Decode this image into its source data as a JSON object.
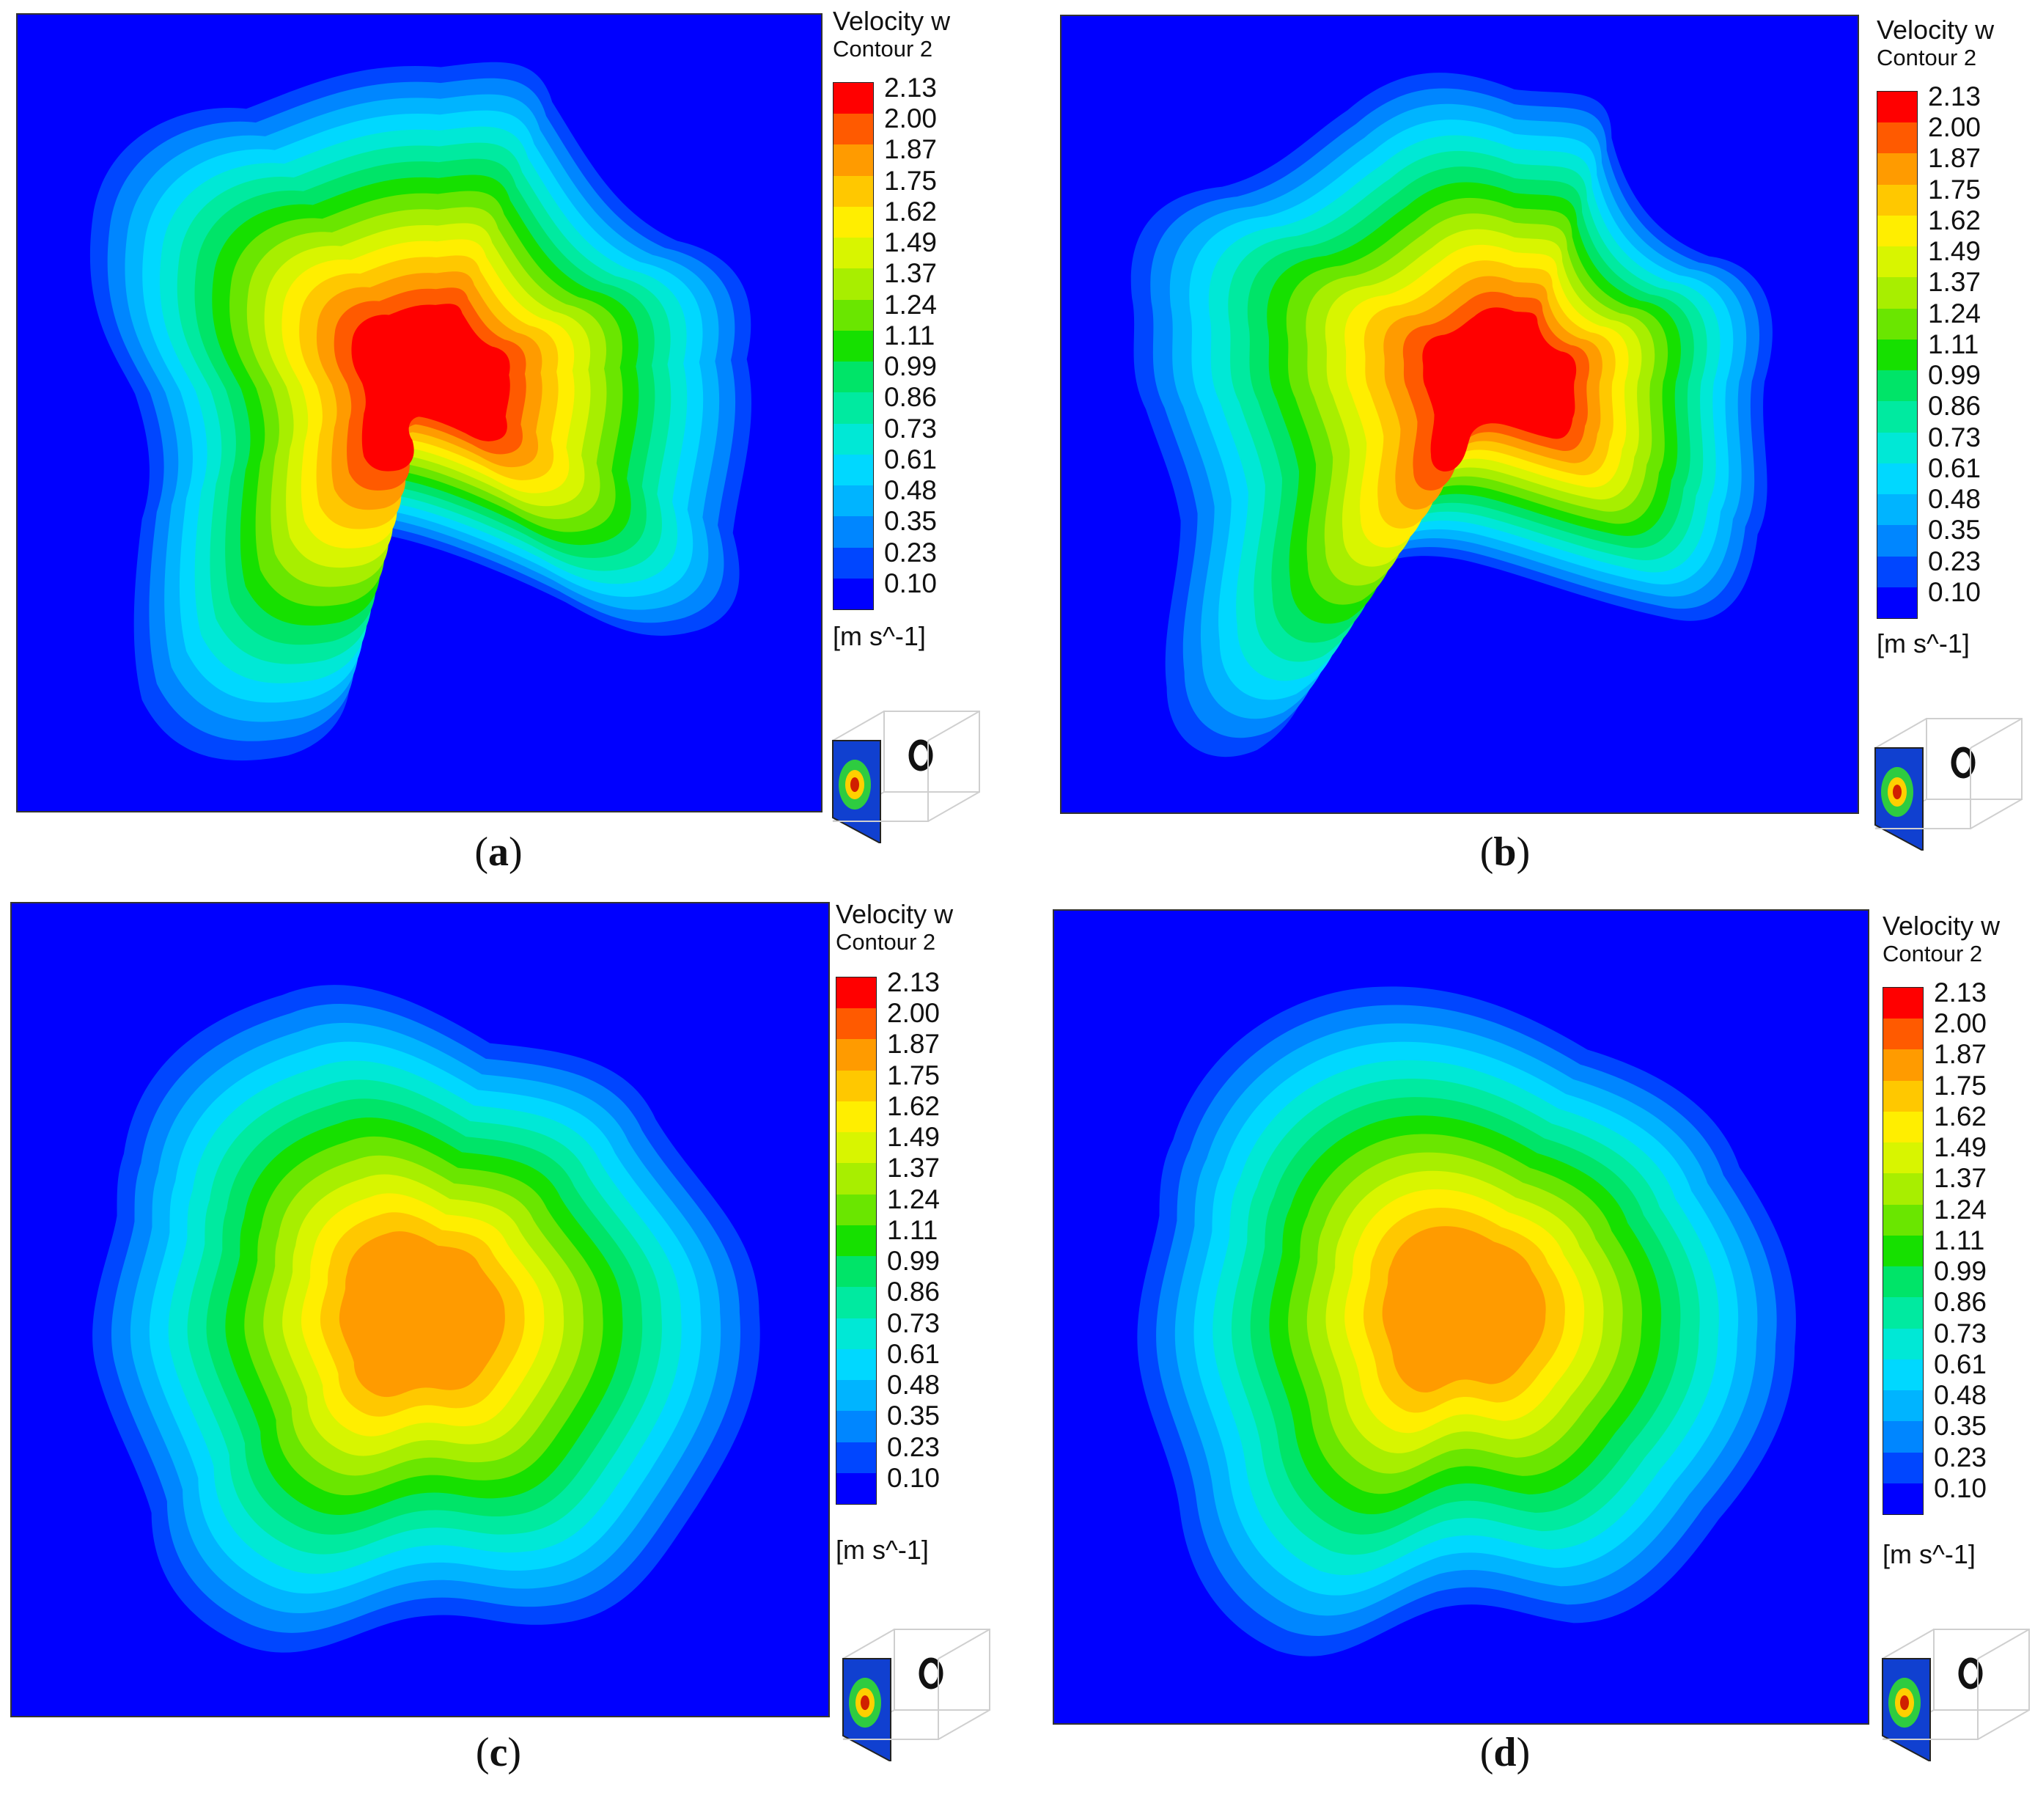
{
  "chart_data": [
    {
      "type": "heatmap",
      "panel_label": "a",
      "legend_title": "Velocity w",
      "legend_subtitle": "Contour 2",
      "unit": "[m s^-1]",
      "colorbar_ticks": [
        "2.13",
        "2.00",
        "1.87",
        "1.75",
        "1.62",
        "1.49",
        "1.37",
        "1.24",
        "1.11",
        "0.99",
        "0.86",
        "0.73",
        "0.61",
        "0.48",
        "0.35",
        "0.23",
        "0.10"
      ],
      "value_range": [
        0.1,
        2.13
      ],
      "peak_value": 2.13
    },
    {
      "type": "heatmap",
      "panel_label": "b",
      "legend_title": "Velocity w",
      "legend_subtitle": "Contour 2",
      "unit": "[m s^-1]",
      "colorbar_ticks": [
        "2.13",
        "2.00",
        "1.87",
        "1.75",
        "1.62",
        "1.49",
        "1.37",
        "1.24",
        "1.11",
        "0.99",
        "0.86",
        "0.73",
        "0.61",
        "0.48",
        "0.35",
        "0.23",
        "0.10"
      ],
      "value_range": [
        0.1,
        2.13
      ],
      "peak_value": 2.13
    },
    {
      "type": "heatmap",
      "panel_label": "c",
      "legend_title": "Velocity w",
      "legend_subtitle": "Contour 2",
      "unit": "[m s^-1]",
      "colorbar_ticks": [
        "2.13",
        "2.00",
        "1.87",
        "1.75",
        "1.62",
        "1.49",
        "1.37",
        "1.24",
        "1.11",
        "0.99",
        "0.86",
        "0.73",
        "0.61",
        "0.48",
        "0.35",
        "0.23",
        "0.10"
      ],
      "value_range": [
        0.1,
        2.13
      ],
      "peak_value": 2.0
    },
    {
      "type": "heatmap",
      "panel_label": "d",
      "legend_title": "Velocity w",
      "legend_subtitle": "Contour 2",
      "unit": "[m s^-1]",
      "colorbar_ticks": [
        "2.13",
        "2.00",
        "1.87",
        "1.75",
        "1.62",
        "1.49",
        "1.37",
        "1.24",
        "1.11",
        "0.99",
        "0.86",
        "0.73",
        "0.61",
        "0.48",
        "0.35",
        "0.23",
        "0.10"
      ],
      "value_range": [
        0.1,
        2.13
      ],
      "peak_value": 2.0
    }
  ],
  "colormap": [
    "#ff0000",
    "#ff5a00",
    "#ff9b00",
    "#ffc800",
    "#ffee00",
    "#d8f500",
    "#a8ee00",
    "#6ae600",
    "#16e000",
    "#00e468",
    "#00eaa0",
    "#00e8d6",
    "#00d8ff",
    "#00b4ff",
    "#0086ff",
    "#0046ff",
    "#0000ff"
  ]
}
